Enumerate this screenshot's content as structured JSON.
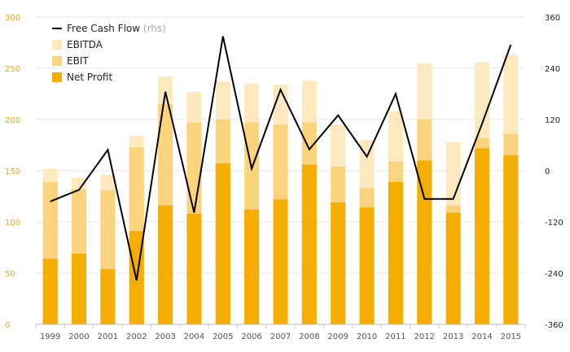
{
  "chart_data": {
    "type": "bar",
    "categories": [
      "1999",
      "2000",
      "2001",
      "2002",
      "2003",
      "2004",
      "2005",
      "2006",
      "2007",
      "2008",
      "2009",
      "2010",
      "2011",
      "2012",
      "2013",
      "2014",
      "2015"
    ],
    "series": [
      {
        "name": "Net Profit",
        "kind": "bar",
        "axis": "left",
        "color": "#f5ad00",
        "values": [
          64,
          69,
          54,
          91,
          116,
          108,
          157,
          112,
          122,
          156,
          119,
          114,
          139,
          160,
          109,
          172,
          165
        ]
      },
      {
        "name": "EBIT",
        "kind": "bar",
        "axis": "left",
        "color": "#fbd37c",
        "values": [
          139,
          132,
          131,
          173,
          215,
          197,
          200,
          197,
          195,
          197,
          154,
          133,
          159,
          200,
          116,
          182,
          186
        ]
      },
      {
        "name": "EBITDA",
        "kind": "bar",
        "axis": "left",
        "color": "#fde9bd",
        "values": [
          152,
          143,
          146,
          184,
          242,
          227,
          237,
          235,
          234,
          238,
          195,
          180,
          208,
          255,
          178,
          256,
          263
        ]
      },
      {
        "name": "Free Cash Flow",
        "suffix": "(rhs)",
        "kind": "line",
        "axis": "right",
        "color": "#000000",
        "values": [
          -72,
          -45,
          49,
          -257,
          185,
          -98,
          315,
          5,
          190,
          50,
          130,
          33,
          180,
          -66,
          -66,
          110,
          295
        ]
      }
    ],
    "y_left": {
      "min": 0,
      "max": 300,
      "ticks": [
        0,
        50,
        100,
        150,
        200,
        250,
        300
      ],
      "color": "#f5a800"
    },
    "y_right": {
      "min": -360,
      "max": 360,
      "ticks": [
        -360,
        -240,
        -120,
        0,
        120,
        240,
        360
      ],
      "color": "#222222"
    },
    "legend": {
      "position": "top-left",
      "order": [
        "Free Cash Flow",
        "EBITDA",
        "EBIT",
        "Net Profit"
      ]
    },
    "grid": "horizontal",
    "title": "",
    "xlabel": "",
    "ylabel": ""
  }
}
